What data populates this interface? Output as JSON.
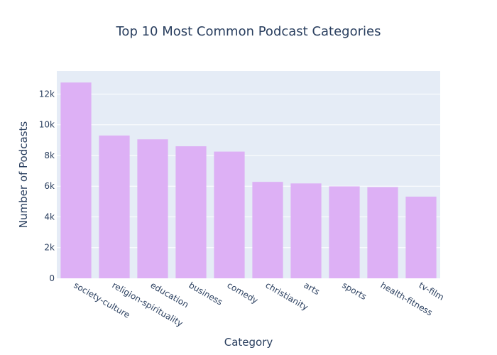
{
  "chart_data": {
    "type": "bar",
    "title": "Top 10 Most Common Podcast Categories",
    "xlabel": "Category",
    "ylabel": "Number of Podcasts",
    "categories": [
      "society-culture",
      "religion-spirituality",
      "education",
      "business",
      "comedy",
      "christianity",
      "arts",
      "sports",
      "health-fitness",
      "tv-film"
    ],
    "values": [
      12750,
      9300,
      9050,
      8600,
      8250,
      6280,
      6180,
      5990,
      5940,
      5320
    ],
    "ylim": [
      0,
      13500
    ],
    "yticks": [
      0,
      2000,
      4000,
      6000,
      8000,
      10000,
      12000
    ],
    "ytick_labels": [
      "0",
      "2k",
      "4k",
      "6k",
      "8k",
      "10k",
      "12k"
    ],
    "grid": true,
    "colors": {
      "bar": "#ddb0f5",
      "plot_bg": "#e5ecf6",
      "grid": "#ffffff",
      "text": "#2a3f5f"
    }
  }
}
